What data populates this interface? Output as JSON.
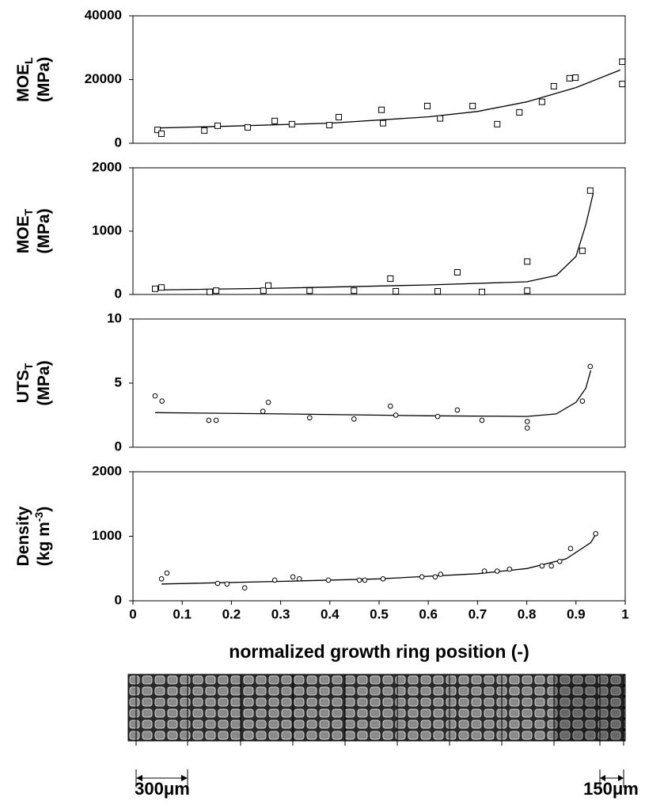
{
  "chart_data": [
    {
      "type": "scatter",
      "marker": "square",
      "y_label": "MOE",
      "y_label_sub": "L",
      "y_unit": "(MPa)",
      "xlim": [
        0,
        1
      ],
      "ylim": [
        0,
        40000
      ],
      "yticks": [
        0,
        20000,
        40000
      ],
      "x": [
        0.05,
        0.058,
        0.145,
        0.172,
        0.233,
        0.288,
        0.323,
        0.399,
        0.418,
        0.505,
        0.508,
        0.598,
        0.624,
        0.69,
        0.74,
        0.785,
        0.831,
        0.855,
        0.887,
        0.899,
        0.994,
        0.994
      ],
      "values": [
        4200,
        3000,
        4000,
        5500,
        5000,
        7000,
        6000,
        5700,
        8200,
        10500,
        6300,
        11700,
        7800,
        11700,
        6000,
        9700,
        13000,
        17900,
        20400,
        20600,
        25600,
        18600
      ],
      "fit": {
        "x": [
          0.05,
          0.2,
          0.4,
          0.6,
          0.7,
          0.8,
          0.9,
          0.99
        ],
        "values": [
          4800,
          5400,
          6300,
          8300,
          10000,
          13000,
          17500,
          23000
        ]
      }
    },
    {
      "type": "scatter",
      "marker": "square",
      "y_label": "MOE",
      "y_label_sub": "T",
      "y_unit": "(MPa)",
      "xlim": [
        0,
        1
      ],
      "ylim": [
        0,
        2000
      ],
      "yticks": [
        0,
        1000,
        2000
      ],
      "x": [
        0.045,
        0.058,
        0.156,
        0.169,
        0.265,
        0.275,
        0.359,
        0.449,
        0.523,
        0.534,
        0.619,
        0.659,
        0.709,
        0.801,
        0.801,
        0.913,
        0.929
      ],
      "values": [
        90,
        110,
        40,
        60,
        60,
        140,
        60,
        60,
        250,
        50,
        50,
        350,
        40,
        520,
        60,
        690,
        1640
      ],
      "fit": {
        "x": [
          0.045,
          0.3,
          0.6,
          0.8,
          0.86,
          0.9,
          0.92,
          0.935
        ],
        "values": [
          70,
          100,
          150,
          200,
          300,
          600,
          1100,
          1600
        ]
      }
    },
    {
      "type": "scatter",
      "marker": "circle",
      "y_label": "UTS",
      "y_label_sub": "T",
      "y_unit": "(MPa)",
      "xlim": [
        0,
        1
      ],
      "ylim": [
        0,
        10
      ],
      "yticks": [
        0,
        5,
        10
      ],
      "x": [
        0.045,
        0.059,
        0.154,
        0.169,
        0.264,
        0.275,
        0.359,
        0.449,
        0.523,
        0.534,
        0.619,
        0.659,
        0.709,
        0.801,
        0.801,
        0.913,
        0.929
      ],
      "values": [
        4.0,
        3.6,
        2.1,
        2.1,
        2.8,
        3.5,
        2.3,
        2.2,
        3.2,
        2.5,
        2.4,
        2.9,
        2.1,
        2.0,
        1.5,
        3.6,
        6.3
      ],
      "fit": {
        "x": [
          0.045,
          0.3,
          0.6,
          0.8,
          0.86,
          0.9,
          0.92,
          0.93
        ],
        "values": [
          2.7,
          2.6,
          2.45,
          2.4,
          2.6,
          3.5,
          4.6,
          6.0
        ]
      }
    },
    {
      "type": "scatter",
      "marker": "circle",
      "y_label": "Density",
      "y_unit": "(kg m",
      "y_unit_sup": "-3",
      "y_unit_end": ")",
      "xlim": [
        0,
        1
      ],
      "ylim": [
        0,
        2000
      ],
      "yticks": [
        0,
        1000,
        2000
      ],
      "xticks": [
        0,
        0.1,
        0.2,
        0.3,
        0.4,
        0.5,
        0.6,
        0.7,
        0.8,
        0.9,
        1
      ],
      "x_label": "normalized growth ring position (-)",
      "x": [
        0.058,
        0.069,
        0.172,
        0.191,
        0.227,
        0.288,
        0.325,
        0.338,
        0.397,
        0.46,
        0.471,
        0.508,
        0.587,
        0.614,
        0.625,
        0.714,
        0.74,
        0.765,
        0.831,
        0.85,
        0.867,
        0.889,
        0.94
      ],
      "values": [
        340,
        430,
        270,
        260,
        200,
        320,
        370,
        340,
        320,
        320,
        320,
        340,
        370,
        370,
        410,
        460,
        460,
        490,
        540,
        540,
        610,
        810,
        1040
      ],
      "fit": {
        "x": [
          0.058,
          0.3,
          0.5,
          0.7,
          0.8,
          0.88,
          0.93,
          0.94
        ],
        "values": [
          260,
          300,
          340,
          420,
          500,
          650,
          900,
          1030
        ]
      }
    }
  ],
  "scale_bars": [
    "300μm",
    "150μm"
  ]
}
